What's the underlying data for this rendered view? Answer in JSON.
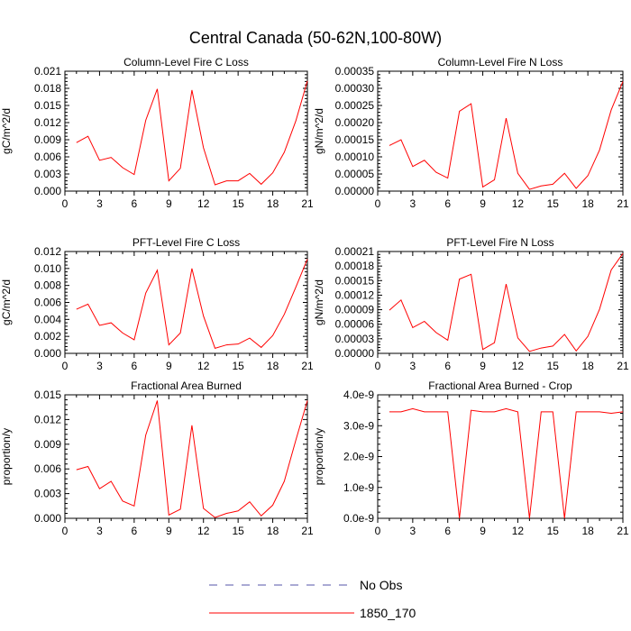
{
  "title": "Central Canada (50-62N,100-80W)",
  "x_values": [
    1,
    2,
    3,
    4,
    5,
    6,
    7,
    8,
    9,
    10,
    11,
    12,
    13,
    14,
    15,
    16,
    17,
    18,
    19,
    20,
    21
  ],
  "x_ticks": [
    0,
    3,
    6,
    9,
    12,
    15,
    18,
    21
  ],
  "chart_data": [
    {
      "type": "line",
      "title": "Column-Level Fire C Loss",
      "ylabel": "gC/m^2/d",
      "xlim": [
        0,
        21
      ],
      "ylim": [
        0,
        0.021
      ],
      "y_ticks": [
        "0.000",
        "0.003",
        "0.006",
        "0.009",
        "0.012",
        "0.015",
        "0.018",
        "0.021"
      ],
      "series": [
        {
          "name": "1850_170",
          "color": "#ff0000",
          "values": [
            0.0085,
            0.0096,
            0.0054,
            0.0059,
            0.0041,
            0.0029,
            0.0124,
            0.0179,
            0.0018,
            0.004,
            0.0177,
            0.0076,
            0.0011,
            0.0018,
            0.0018,
            0.0031,
            0.0012,
            0.0032,
            0.0068,
            0.0123,
            0.0193
          ]
        }
      ]
    },
    {
      "type": "line",
      "title": "Column-Level Fire N Loss",
      "ylabel": "gN/m^2/d",
      "xlim": [
        0,
        21
      ],
      "ylim": [
        0,
        0.00035
      ],
      "y_ticks": [
        "0.00000",
        "0.00005",
        "0.00010",
        "0.00015",
        "0.00020",
        "0.00025",
        "0.00030",
        "0.00035"
      ],
      "series": [
        {
          "name": "1850_170",
          "color": "#ff0000",
          "values": [
            0.000133,
            0.00015,
            7.2e-05,
            9e-05,
            5.5e-05,
            3.8e-05,
            0.000233,
            0.000255,
            1.2e-05,
            3.3e-05,
            0.000213,
            5.2e-05,
            5e-06,
            1.5e-05,
            2e-05,
            5.2e-05,
            8e-06,
            4.5e-05,
            0.00012,
            0.000237,
            0.00032
          ]
        }
      ]
    },
    {
      "type": "line",
      "title": "PFT-Level Fire C Loss",
      "ylabel": "gC/m^2/d",
      "xlim": [
        0,
        21
      ],
      "ylim": [
        0,
        0.012
      ],
      "y_ticks": [
        "0.000",
        "0.002",
        "0.004",
        "0.006",
        "0.008",
        "0.010",
        "0.012"
      ],
      "series": [
        {
          "name": "1850_170",
          "color": "#ff0000",
          "values": [
            0.0052,
            0.0058,
            0.0033,
            0.0036,
            0.0024,
            0.0016,
            0.0071,
            0.0098,
            0.001,
            0.0024,
            0.01,
            0.0044,
            0.0006,
            0.001,
            0.0011,
            0.0018,
            0.0007,
            0.0021,
            0.0046,
            0.0078,
            0.0111
          ]
        }
      ]
    },
    {
      "type": "line",
      "title": "PFT-Level Fire N Loss",
      "ylabel": "gN/m^2/d",
      "xlim": [
        0,
        21
      ],
      "ylim": [
        0,
        0.00021
      ],
      "y_ticks": [
        "0.00000",
        "0.00003",
        "0.00006",
        "0.00009",
        "0.00012",
        "0.00015",
        "0.00018",
        "0.00021"
      ],
      "series": [
        {
          "name": "1850_170",
          "color": "#ff0000",
          "values": [
            8.9e-05,
            0.00011,
            5.3e-05,
            6.6e-05,
            4.3e-05,
            2.7e-05,
            0.000153,
            0.000163,
            8e-06,
            2.2e-05,
            0.000143,
            3.2e-05,
            4e-06,
            1.1e-05,
            1.5e-05,
            3.9e-05,
            5e-06,
            3.5e-05,
            9.1e-05,
            0.000172,
            0.000206
          ]
        }
      ]
    },
    {
      "type": "line",
      "title": "Fractional Area Burned",
      "ylabel": "proportion/y",
      "xlim": [
        0,
        21
      ],
      "ylim": [
        0,
        0.015
      ],
      "y_ticks": [
        "0.000",
        "0.003",
        "0.006",
        "0.009",
        "0.012",
        "0.015"
      ],
      "series": [
        {
          "name": "1850_170",
          "color": "#ff0000",
          "values": [
            0.0059,
            0.0063,
            0.0036,
            0.0045,
            0.0021,
            0.0015,
            0.0101,
            0.0143,
            0.0004,
            0.0011,
            0.0113,
            0.0012,
            0.0001,
            0.0006,
            0.0009,
            0.002,
            0.0003,
            0.0016,
            0.0045,
            0.0095,
            0.0143
          ]
        }
      ]
    },
    {
      "type": "line",
      "title": "Fractional Area Burned - Crop",
      "ylabel": "proportion/y",
      "xlim": [
        0,
        21
      ],
      "ylim": [
        0,
        4e-09
      ],
      "y_ticks": [
        "0.0e-9",
        "1.0e-9",
        "2.0e-9",
        "3.0e-9",
        "4.0e-9"
      ],
      "series": [
        {
          "name": "1850_170",
          "color": "#ff0000",
          "values": [
            3.45e-09,
            3.45e-09,
            3.55e-09,
            3.45e-09,
            3.45e-09,
            3.45e-09,
            0,
            3.5e-09,
            3.45e-09,
            3.45e-09,
            3.55e-09,
            3.45e-09,
            0,
            3.45e-09,
            3.45e-09,
            0,
            3.45e-09,
            3.45e-09,
            3.45e-09,
            3.4e-09,
            3.45e-09
          ]
        }
      ]
    }
  ],
  "legend": [
    {
      "label": "No Obs",
      "color": "#5555aa",
      "style": "dashed"
    },
    {
      "label": "1850_170",
      "color": "#ff0000",
      "style": "solid"
    }
  ]
}
